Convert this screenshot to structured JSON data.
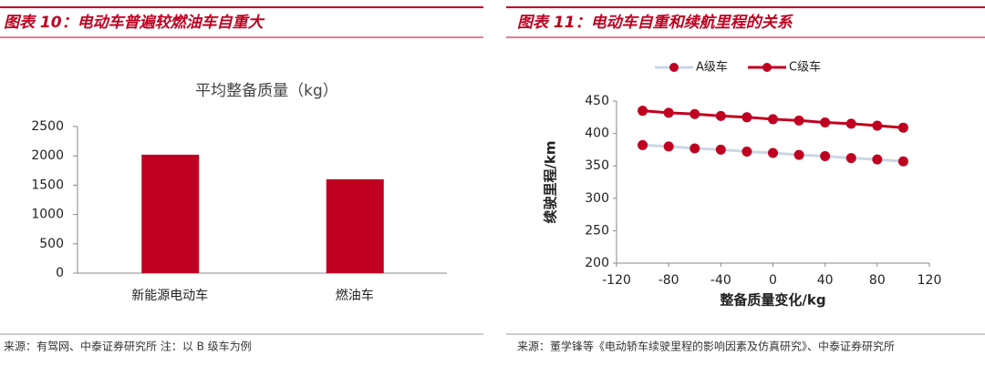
{
  "chart_data": [
    {
      "type": "bar",
      "caption": "图表 10：电动车普遍较燃油车自重大",
      "title": "平均整备质量（kg）",
      "categories": [
        "新能源电动车",
        "燃油车"
      ],
      "values": [
        2020,
        1600
      ],
      "color": "#c00020",
      "ylim": [
        0,
        2500
      ],
      "yticks": [
        0,
        500,
        1000,
        1500,
        2000,
        2500
      ],
      "grid": false,
      "source": "来源：有驾网、中泰证券研究所 注：以 B 级车为例"
    },
    {
      "type": "line",
      "caption": "图表 11：电动车自重和续航里程的关系",
      "x": [
        -100,
        -80,
        -60,
        -40,
        -20,
        0,
        20,
        40,
        60,
        80,
        100
      ],
      "series": [
        {
          "name": "A级车",
          "color": "#c9d7e6",
          "marker_color": "#c00020",
          "values": [
            382,
            380,
            377,
            375,
            372,
            370,
            367,
            365,
            362,
            360,
            357
          ]
        },
        {
          "name": "C级车",
          "color": "#c00020",
          "marker_color": "#c00020",
          "values": [
            435,
            432,
            430,
            427,
            425,
            422,
            420,
            417,
            415,
            412,
            409
          ]
        }
      ],
      "xlabel": "整备质量变化/kg",
      "ylabel": "续驶里程/km",
      "xlim": [
        -120,
        120
      ],
      "xticks": [
        -120,
        -80,
        -40,
        0,
        40,
        80,
        120
      ],
      "ylim": [
        200,
        450
      ],
      "yticks": [
        200,
        250,
        300,
        350,
        400,
        450
      ],
      "legend": "top",
      "grid": false,
      "source": "来源：董学锋等《电动轿车续驶里程的影响因素及仿真研究》、中泰证券研究所"
    }
  ]
}
